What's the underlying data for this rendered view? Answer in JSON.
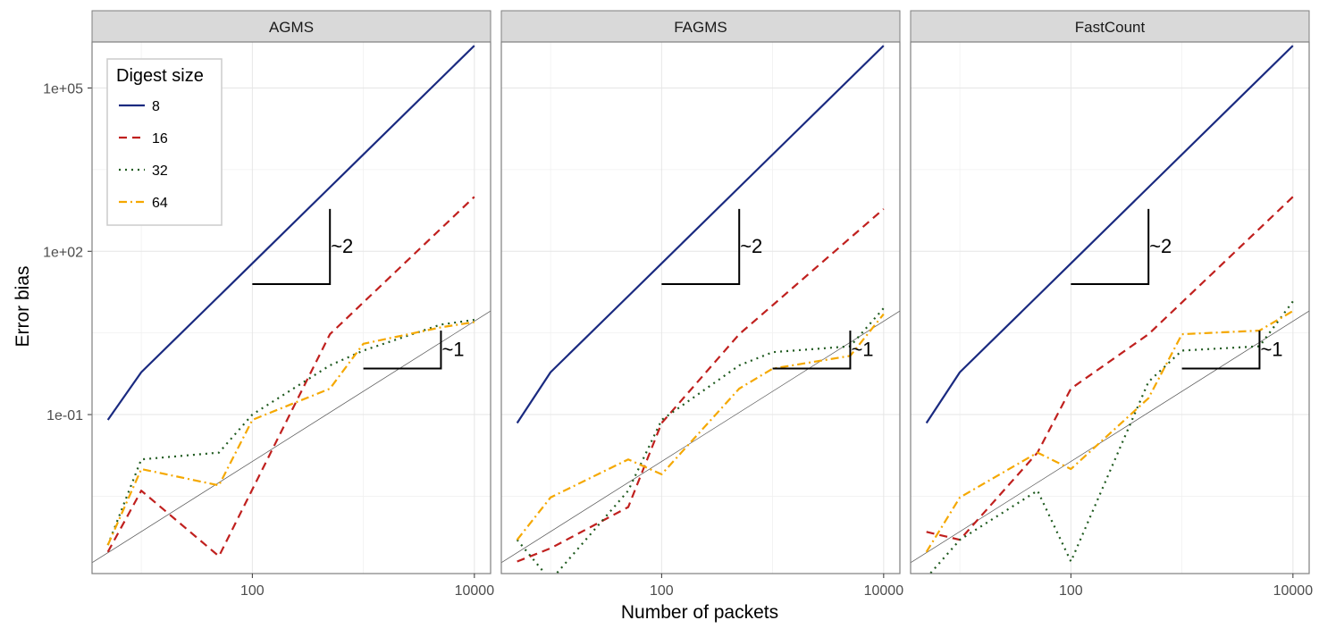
{
  "chart_data": {
    "type": "line",
    "xlabel": "Number of packets",
    "ylabel": "Error bias",
    "x_scale": "log10",
    "y_scale": "log10",
    "xlim": [
      3.6,
      14000
    ],
    "ylim": [
      0.00012,
      700000
    ],
    "x_ticks": [
      {
        "value": 100,
        "label": "100"
      },
      {
        "value": 10000,
        "label": "10000"
      }
    ],
    "y_ticks": [
      {
        "value": 0.1,
        "label": "1e-01"
      },
      {
        "value": 100,
        "label": "1e+02"
      },
      {
        "value": 100000,
        "label": "1e+05"
      }
    ],
    "grid": true,
    "legend": {
      "title": "Digest size",
      "position": "top-left",
      "entries": [
        {
          "label": "8",
          "color": "#1a2a80",
          "dash": "solid"
        },
        {
          "label": "16",
          "color": "#c0201e",
          "dash": "dashed"
        },
        {
          "label": "32",
          "color": "#1f5a1f",
          "dash": "dotted"
        },
        {
          "label": "64",
          "color": "#f5a800",
          "dash": "dotdash"
        }
      ]
    },
    "panels": [
      {
        "title": "AGMS",
        "series": [
          {
            "name": "8",
            "x": [
              5,
              10,
              50,
              100,
              500,
              10000
            ],
            "y": [
              0.08,
              0.6,
              15,
              60,
              1500,
              600000
            ]
          },
          {
            "name": "16",
            "x": [
              5,
              10,
              50,
              500,
              10000
            ],
            "y": [
              0.0003,
              0.004,
              0.00025,
              3,
              1000
            ]
          },
          {
            "name": "32",
            "x": [
              5,
              10,
              50,
              100,
              500,
              1000,
              5000,
              10000
            ],
            "y": [
              0.0004,
              0.015,
              0.02,
              0.1,
              0.8,
              1.5,
              4.5,
              5.5
            ]
          },
          {
            "name": "64",
            "x": [
              5,
              10,
              50,
              100,
              500,
              1000,
              5000,
              10000
            ],
            "y": [
              0.0004,
              0.01,
              0.005,
              0.08,
              0.3,
              2,
              4,
              5
            ]
          }
        ],
        "reference_line": {
          "x": [
            3.6,
            14000
          ],
          "y": [
            0.00019,
            8
          ]
        },
        "slope_triangles": [
          {
            "label": "~2",
            "x": [
              100,
              500
            ],
            "y": [
              25,
              600
            ]
          },
          {
            "label": "~1",
            "x": [
              1000,
              5000
            ],
            "y": [
              0.7,
              3.5
            ]
          }
        ]
      },
      {
        "title": "FAGMS",
        "series": [
          {
            "name": "8",
            "x": [
              5,
              10,
              50,
              100,
              500,
              10000
            ],
            "y": [
              0.07,
              0.6,
              15,
              60,
              1500,
              600000
            ]
          },
          {
            "name": "16",
            "x": [
              5,
              10,
              50,
              100,
              500,
              10000
            ],
            "y": [
              0.0002,
              0.00035,
              0.002,
              0.07,
              3,
              600
            ]
          },
          {
            "name": "32",
            "x": [
              5,
              10,
              50,
              100,
              500,
              1000,
              5000,
              10000
            ],
            "y": [
              0.0005,
              9e-05,
              0.004,
              0.08,
              0.8,
              1.4,
              1.8,
              9
            ]
          },
          {
            "name": "64",
            "x": [
              5,
              10,
              50,
              100,
              500,
              1000,
              5000,
              10000
            ],
            "y": [
              0.0005,
              0.003,
              0.015,
              0.008,
              0.3,
              0.7,
              1.2,
              7
            ]
          }
        ],
        "reference_line": {
          "x": [
            3.6,
            14000
          ],
          "y": [
            0.00019,
            8
          ]
        },
        "slope_triangles": [
          {
            "label": "~2",
            "x": [
              100,
              500
            ],
            "y": [
              25,
              600
            ]
          },
          {
            "label": "~1",
            "x": [
              1000,
              5000
            ],
            "y": [
              0.7,
              3.5
            ]
          }
        ]
      },
      {
        "title": "FastCount",
        "series": [
          {
            "name": "8",
            "x": [
              5,
              10,
              50,
              100,
              500,
              10000
            ],
            "y": [
              0.07,
              0.6,
              15,
              60,
              1500,
              600000
            ]
          },
          {
            "name": "16",
            "x": [
              5,
              10,
              50,
              100,
              500,
              10000
            ],
            "y": [
              0.0007,
              0.0005,
              0.02,
              0.3,
              3,
              1000
            ]
          },
          {
            "name": "32",
            "x": [
              5,
              10,
              50,
              100,
              500,
              1000,
              5000,
              10000
            ],
            "y": [
              0.0001,
              0.0005,
              0.004,
              0.0002,
              0.4,
              1.5,
              1.8,
              12
            ]
          },
          {
            "name": "64",
            "x": [
              5,
              10,
              50,
              100,
              500,
              1000,
              5000,
              10000
            ],
            "y": [
              0.0003,
              0.003,
              0.02,
              0.01,
              0.2,
              3,
              3.5,
              8
            ]
          }
        ],
        "reference_line": {
          "x": [
            3.6,
            14000
          ],
          "y": [
            0.00019,
            8
          ]
        },
        "slope_triangles": [
          {
            "label": "~2",
            "x": [
              100,
              500
            ],
            "y": [
              25,
              600
            ]
          },
          {
            "label": "~1",
            "x": [
              1000,
              5000
            ],
            "y": [
              0.7,
              3.5
            ]
          }
        ]
      }
    ]
  }
}
